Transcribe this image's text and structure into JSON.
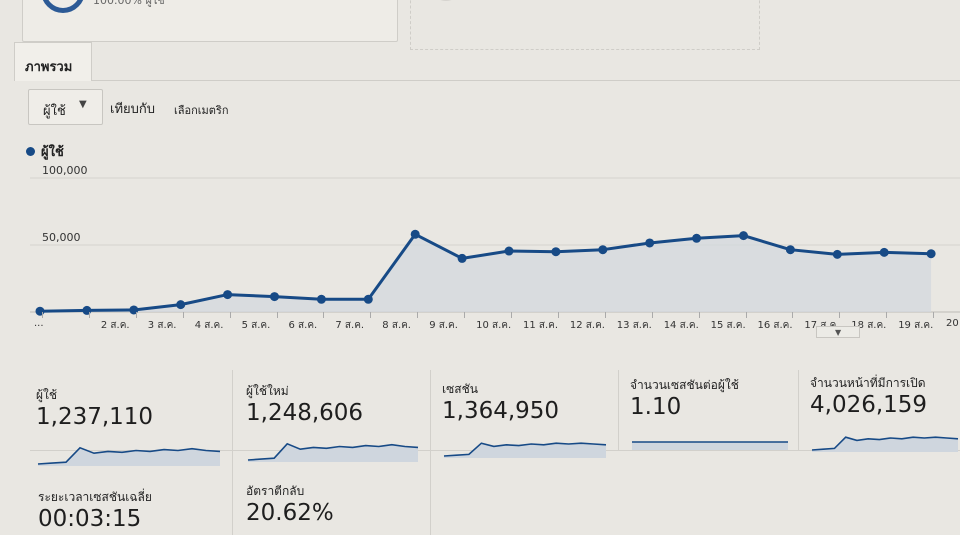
{
  "header": {
    "top_text": "100.00% ผู้ใช้"
  },
  "tabs": [
    {
      "label": "ภาพรวม"
    }
  ],
  "controls": {
    "metric_select": "ผู้ใช้",
    "compare_label": "เทียบกับ",
    "choose_metric_label": "เลือกเมตริก"
  },
  "chart_data": {
    "type": "area",
    "title": "",
    "legend": [
      "ผู้ใช้"
    ],
    "color": "#174a86",
    "fill": "#d3d8de",
    "y_ticks": [
      "100,000",
      "50,000"
    ],
    "ylim": [
      0,
      100000
    ],
    "categories": [
      "...",
      "2 ส.ค.",
      "3 ส.ค.",
      "4 ส.ค.",
      "5 ส.ค.",
      "6 ส.ค.",
      "7 ส.ค.",
      "8 ส.ค.",
      "9 ส.ค.",
      "10 ส.ค.",
      "11 ส.ค.",
      "12 ส.ค.",
      "13 ส.ค.",
      "14 ส.ค.",
      "15 ส.ค.",
      "16 ส.ค.",
      "17 ส.ค.",
      "18 ส.ค.",
      "19 ส.ค.",
      "20"
    ],
    "series": [
      {
        "name": "ผู้ใช้",
        "values": [
          600,
          1200,
          1500,
          5500,
          13000,
          11500,
          9500,
          9500,
          58000,
          40000,
          45500,
          45000,
          46500,
          51500,
          55000,
          57000,
          46500,
          43000,
          44500,
          43500
        ]
      }
    ]
  },
  "metrics": [
    {
      "label": "ผู้ใช้",
      "value": "1,237,110",
      "spark": [
        0,
        1,
        2,
        18,
        12,
        14,
        13,
        15,
        14,
        16,
        15,
        17,
        15,
        14
      ]
    },
    {
      "label": "ผู้ใช้ใหม่",
      "value": "1,248,606",
      "spark": [
        0,
        1,
        2,
        18,
        12,
        14,
        13,
        15,
        14,
        16,
        15,
        17,
        15,
        14
      ]
    },
    {
      "label": "เซสชัน",
      "value": "1,364,950",
      "spark": [
        0,
        1,
        2,
        16,
        12,
        14,
        13,
        15,
        14,
        16,
        15,
        16,
        15,
        14
      ]
    },
    {
      "label": "จำนวนเซสชันต่อผู้ใช้",
      "value": "1.10",
      "spark": [
        10,
        10,
        10,
        10,
        10,
        10,
        10,
        10,
        10,
        10,
        10,
        10,
        10,
        10
      ]
    },
    {
      "label": "จำนวนหน้าที่มีการเปิด",
      "value": "4,026,159",
      "spark": [
        0,
        1,
        2,
        16,
        12,
        14,
        13,
        15,
        14,
        16,
        15,
        16,
        15,
        14
      ]
    },
    {
      "label": "ระยะเวลาเซสชันเฉลี่ย",
      "value": "00:03:15",
      "spark": []
    },
    {
      "label": "อัตราตีกลับ",
      "value": "20.62%",
      "spark": []
    }
  ]
}
